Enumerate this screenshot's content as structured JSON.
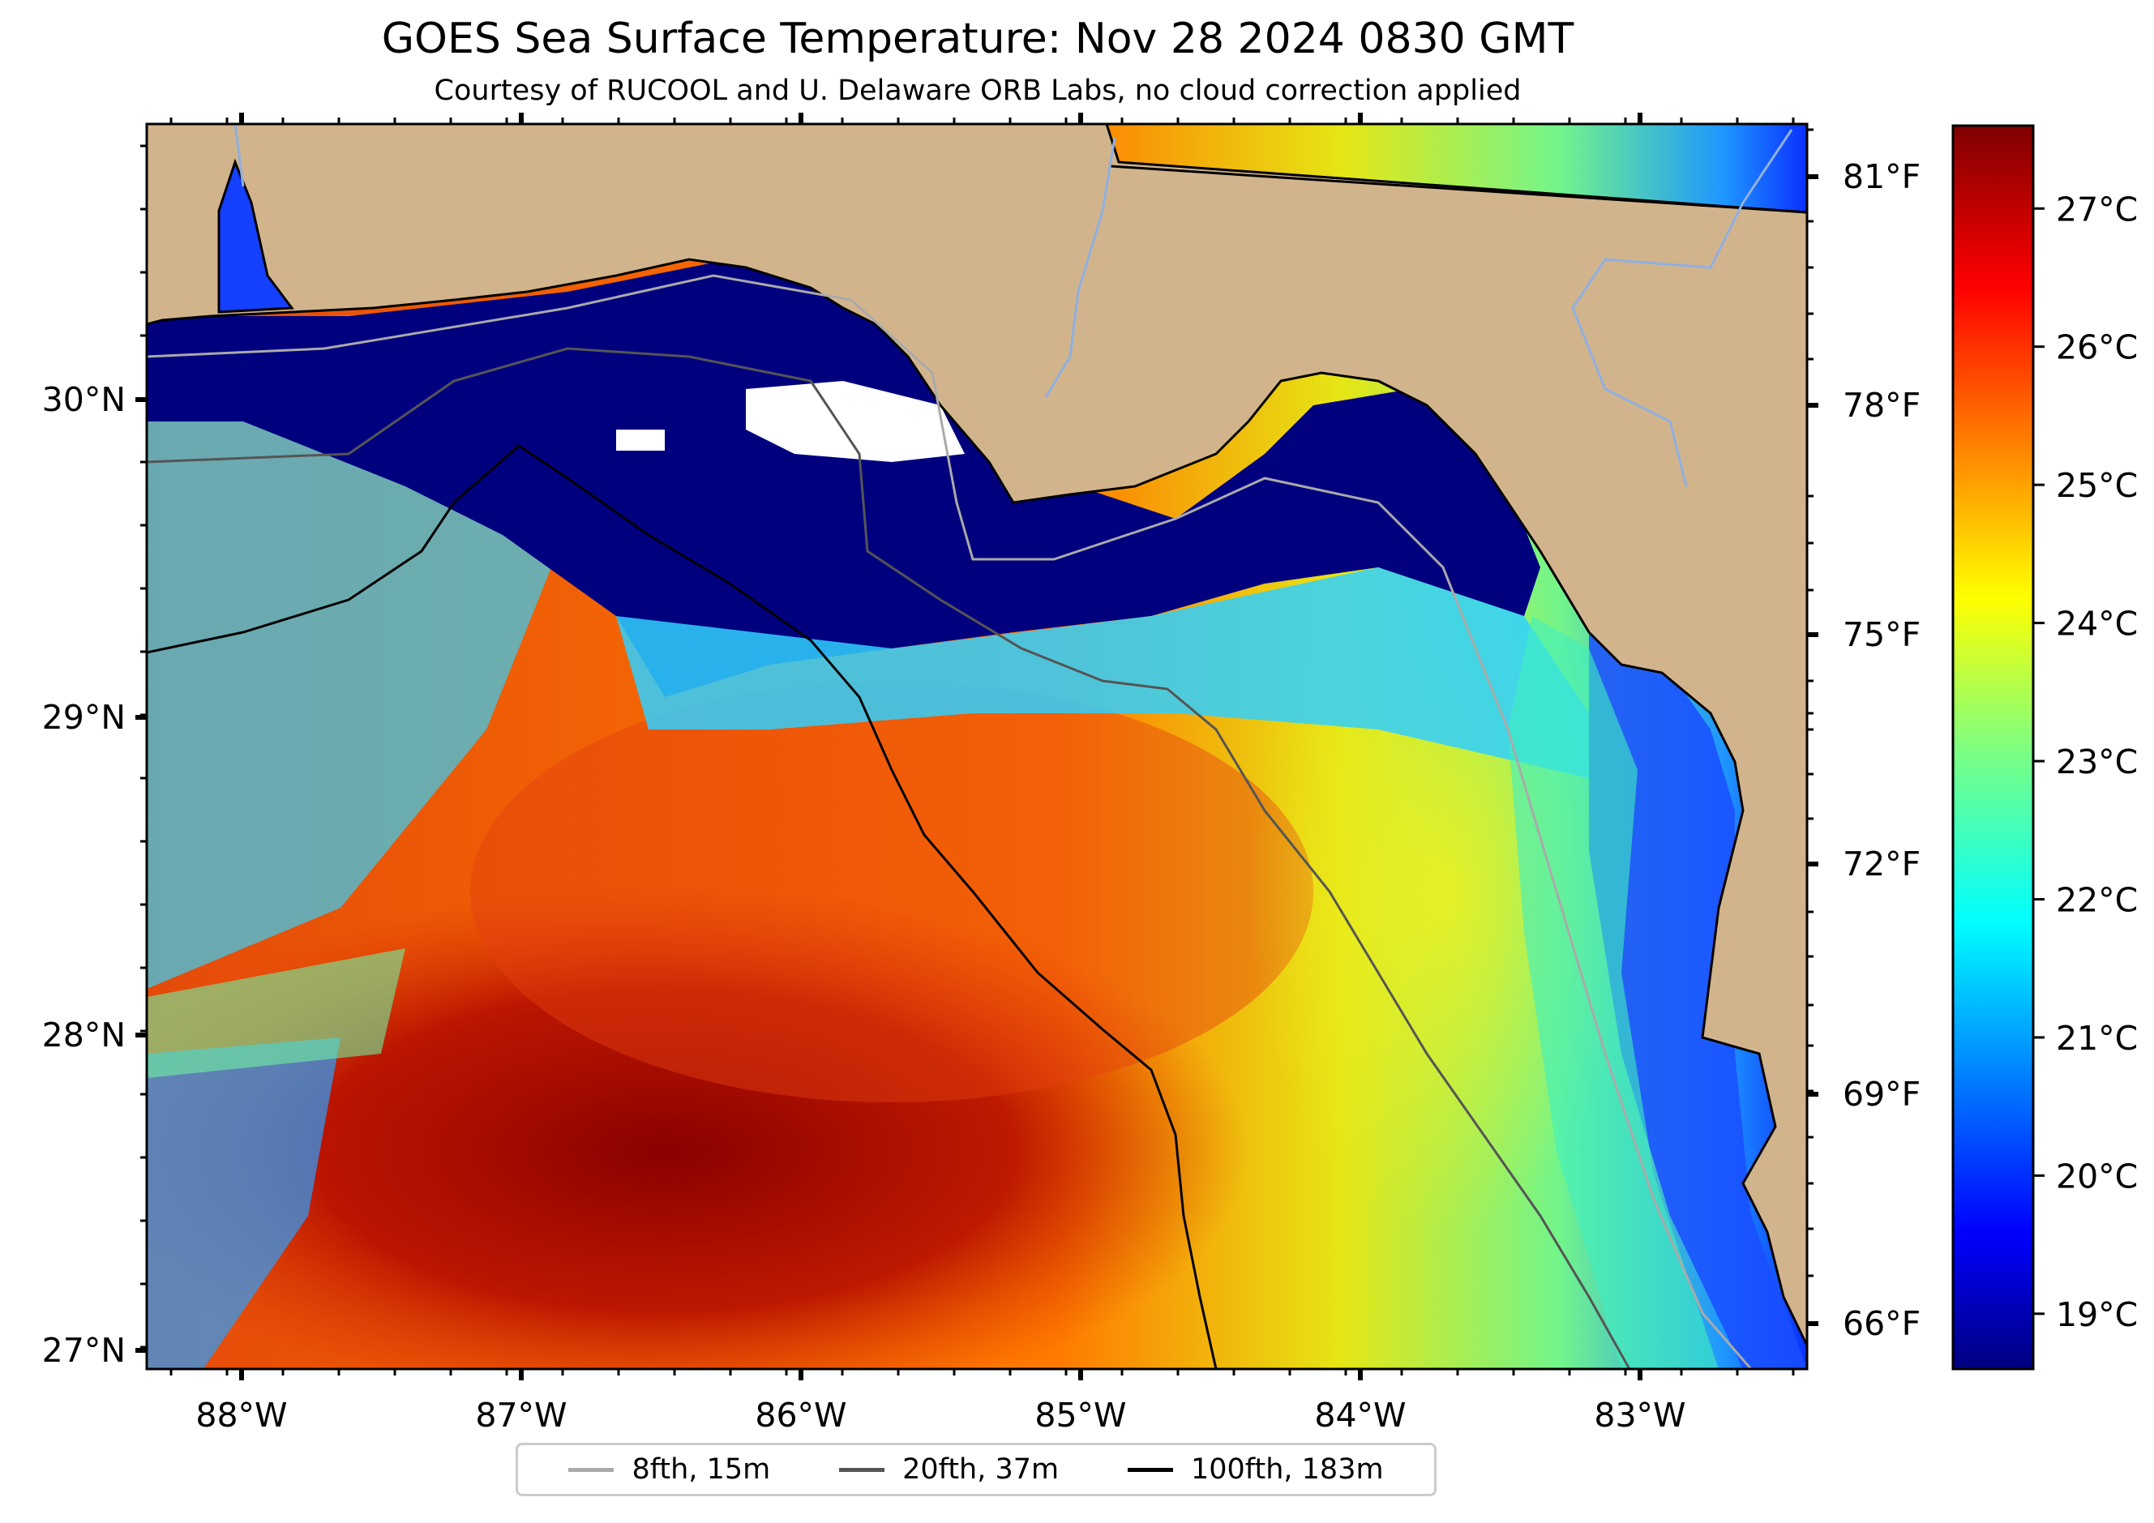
{
  "title": "GOES Sea Surface Temperature: Nov 28 2024 0830 GMT",
  "subtitle": "Courtesy of RUCOOL and U. Delaware ORB Labs, no cloud correction applied",
  "axes": {
    "lon_labels": [
      "88°W",
      "87°W",
      "86°W",
      "85°W",
      "84°W",
      "83°W"
    ],
    "lat_labels": [
      "30°N",
      "29°N",
      "28°N",
      "27°N"
    ],
    "right_f_labels": [
      "81°F",
      "78°F",
      "75°F",
      "72°F",
      "69°F",
      "66°F"
    ]
  },
  "colorbar": {
    "labels": [
      "27°C",
      "26°C",
      "25°C",
      "24°C",
      "23°C",
      "22°C",
      "21°C",
      "20°C",
      "19°C"
    ],
    "colormap": "jet",
    "min_c": 18.6,
    "max_c": 27.6
  },
  "legend": [
    {
      "label": "8fth, 15m",
      "color": "#aaaaaa"
    },
    {
      "label": "20fth, 37m",
      "color": "#555555"
    },
    {
      "label": "100fth, 183m",
      "color": "#000000"
    }
  ],
  "colors": {
    "land": "#d2b48c",
    "river": "#8fb0e0",
    "sst_warm": "#a80000",
    "sst_cool": "#00007f"
  }
}
